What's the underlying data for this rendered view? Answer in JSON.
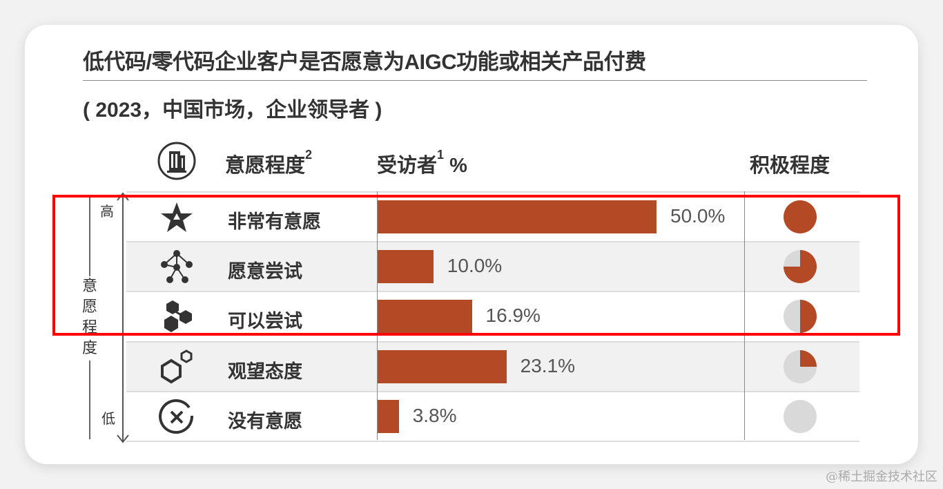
{
  "title": "低代码/零代码企业客户是否愿意为AIGC功能或相关产品付费",
  "subtitle": "( 2023，中国市场，企业领导者 )",
  "headers": {
    "willingness": "意愿程度",
    "willingness_sup": "2",
    "respondents": "受访者",
    "respondents_sup": "1",
    "percent": "%",
    "positivity": "积极程度"
  },
  "axis": {
    "label": "意愿程度",
    "high": "高",
    "low": "低"
  },
  "watermark": "@稀土掘金技术社区",
  "colors": {
    "bar": "#b34a25",
    "ball_empty": "#d9d9d9",
    "highlight": "#ff0000"
  },
  "chart_data": {
    "type": "bar",
    "orientation": "horizontal",
    "categories": [
      "非常有意愿",
      "愿意尝试",
      "可以尝试",
      "观望态度",
      "没有意愿"
    ],
    "icons": [
      "star-icon",
      "network-icon",
      "hexagon-cluster-icon",
      "hexagon-circle-icon",
      "cancel-icon"
    ],
    "values": [
      50.0,
      10.0,
      16.9,
      23.1,
      3.8
    ],
    "value_labels": [
      "50.0%",
      "10.0%",
      "16.9%",
      "23.1%",
      "3.8%"
    ],
    "positivity": [
      1,
      0.75,
      0.5,
      0.25,
      0
    ],
    "highlighted_rows": [
      0,
      1,
      2
    ]
  }
}
